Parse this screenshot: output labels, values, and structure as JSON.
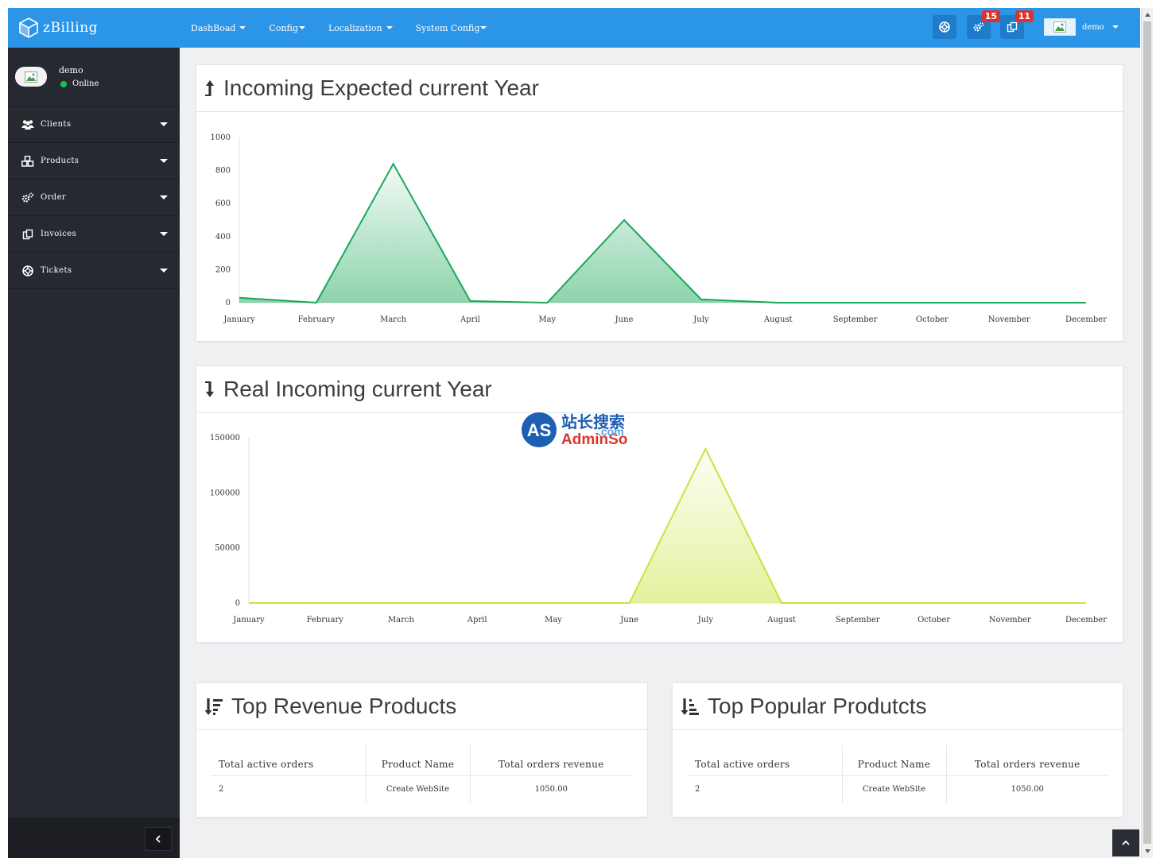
{
  "brand": {
    "name": "zBilling"
  },
  "nav": [
    {
      "label": "DashBoad"
    },
    {
      "label": "Config"
    },
    {
      "label": "Localization"
    },
    {
      "label": "System Config"
    }
  ],
  "header": {
    "settings_badge": "15",
    "invoices_badge": "11",
    "user_name": "demo"
  },
  "sidebar": {
    "profile": {
      "name": "demo",
      "status": "Online"
    },
    "items": [
      {
        "label": "Clients",
        "icon": "users-icon"
      },
      {
        "label": "Products",
        "icon": "cubes-icon"
      },
      {
        "label": "Order",
        "icon": "gears-icon"
      },
      {
        "label": "Invoices",
        "icon": "copy-icon"
      },
      {
        "label": "Tickets",
        "icon": "life-ring-icon"
      }
    ]
  },
  "panels": {
    "expected": {
      "title": "Incoming Expected current Year",
      "icon": "long-arrow-up-icon"
    },
    "real": {
      "title": "Real Incoming current Year",
      "icon": "long-arrow-down-icon"
    },
    "top_revenue": {
      "title": "Top Revenue Products",
      "icon": "sort-amount-desc-icon"
    },
    "top_popular": {
      "title": "Top Popular Produtcts",
      "icon": "sort-amount-asc-icon"
    }
  },
  "chart_data": [
    {
      "type": "area",
      "title": "Incoming Expected current Year",
      "categories": [
        "January",
        "February",
        "March",
        "April",
        "May",
        "June",
        "July",
        "August",
        "September",
        "October",
        "November",
        "December"
      ],
      "values": [
        30,
        0,
        840,
        10,
        0,
        500,
        20,
        0,
        0,
        0,
        0,
        0
      ],
      "ylim": [
        0,
        1000
      ],
      "yticks": [
        0,
        200,
        400,
        600,
        800,
        1000
      ],
      "color": "#1aa85a",
      "grid": false
    },
    {
      "type": "area",
      "title": "Real Incoming current Year",
      "categories": [
        "January",
        "February",
        "March",
        "April",
        "May",
        "June",
        "July",
        "August",
        "September",
        "October",
        "November",
        "December"
      ],
      "values": [
        0,
        0,
        0,
        0,
        0,
        0,
        140000,
        0,
        0,
        0,
        0,
        0
      ],
      "ylim": [
        0,
        150000
      ],
      "yticks": [
        0,
        50000,
        100000,
        150000
      ],
      "color": "#c8e43c",
      "grid": false
    }
  ],
  "tables": {
    "top_revenue": {
      "headers": [
        "Total active orders",
        "Product Name",
        "Total orders revenue"
      ],
      "rows": [
        [
          "2",
          "Create WebSite",
          "1050.00"
        ]
      ]
    },
    "top_popular": {
      "headers": [
        "Total active orders",
        "Product Name",
        "Total orders revenue"
      ],
      "rows": [
        [
          "2",
          "Create WebSite",
          "1050.00"
        ]
      ]
    }
  },
  "watermark": {
    "text_cn": "站长搜索",
    "text_as": "AS",
    "text_admin": "AdminSo",
    "text_com": ".com"
  }
}
